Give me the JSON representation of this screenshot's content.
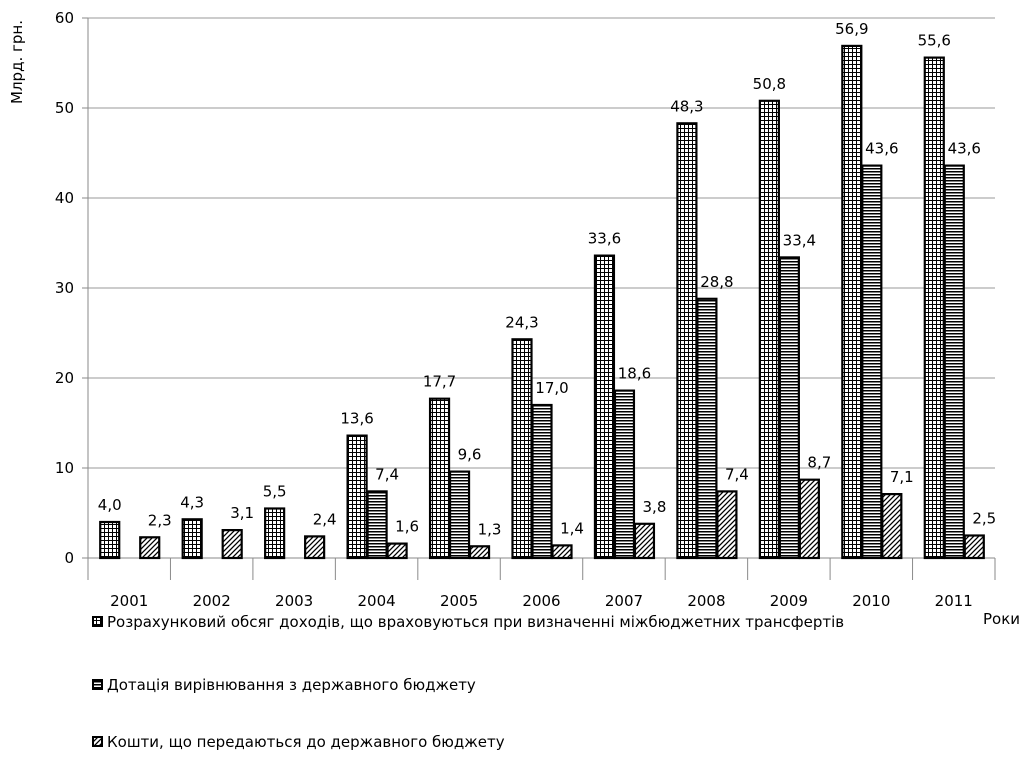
{
  "chart_data": {
    "type": "bar",
    "ylabel": "Млрд. грн.",
    "xlabel": "Роки",
    "ylim": [
      0,
      60
    ],
    "yticks": [
      0,
      10,
      20,
      30,
      40,
      50,
      60
    ],
    "grid": true,
    "legend_position": "bottom",
    "categories": [
      "2001",
      "2002",
      "2003",
      "2004",
      "2005",
      "2006",
      "2007",
      "2008",
      "2009",
      "2010",
      "2011"
    ],
    "series": [
      {
        "name": "Розрахунковий обсяг доходів, що враховуються при визначенні міжбюджетних трансфертів",
        "pattern": "grid",
        "values": [
          4.0,
          4.3,
          5.5,
          13.6,
          17.7,
          24.3,
          33.6,
          48.3,
          50.8,
          56.9,
          55.6
        ],
        "labels": [
          "4,0",
          "4,3",
          "5,5",
          "13,6",
          "17,7",
          "24,3",
          "33,6",
          "48,3",
          "50,8",
          "56,9",
          "55,6"
        ]
      },
      {
        "name": "Дотація вирівнювання з державного бюджету",
        "pattern": "horizontal",
        "values": [
          null,
          null,
          null,
          7.4,
          9.6,
          17.0,
          18.6,
          28.8,
          33.4,
          43.6,
          43.6
        ],
        "labels": [
          "",
          "",
          "",
          "7,4",
          "9,6",
          "17,0",
          "18,6",
          "28,8",
          "33,4",
          "43,6",
          "43,6"
        ]
      },
      {
        "name": "Кошти, що передаються до державного бюджету",
        "pattern": "diagonal",
        "values": [
          2.3,
          3.1,
          2.4,
          1.6,
          1.3,
          1.4,
          3.8,
          7.4,
          8.7,
          7.1,
          2.5
        ],
        "labels": [
          "2,3",
          "3,1",
          "2,4",
          "1,6",
          "1,3",
          "1,4",
          "3,8",
          "7,4",
          "8,7",
          "7,1",
          "2,5"
        ]
      }
    ]
  }
}
